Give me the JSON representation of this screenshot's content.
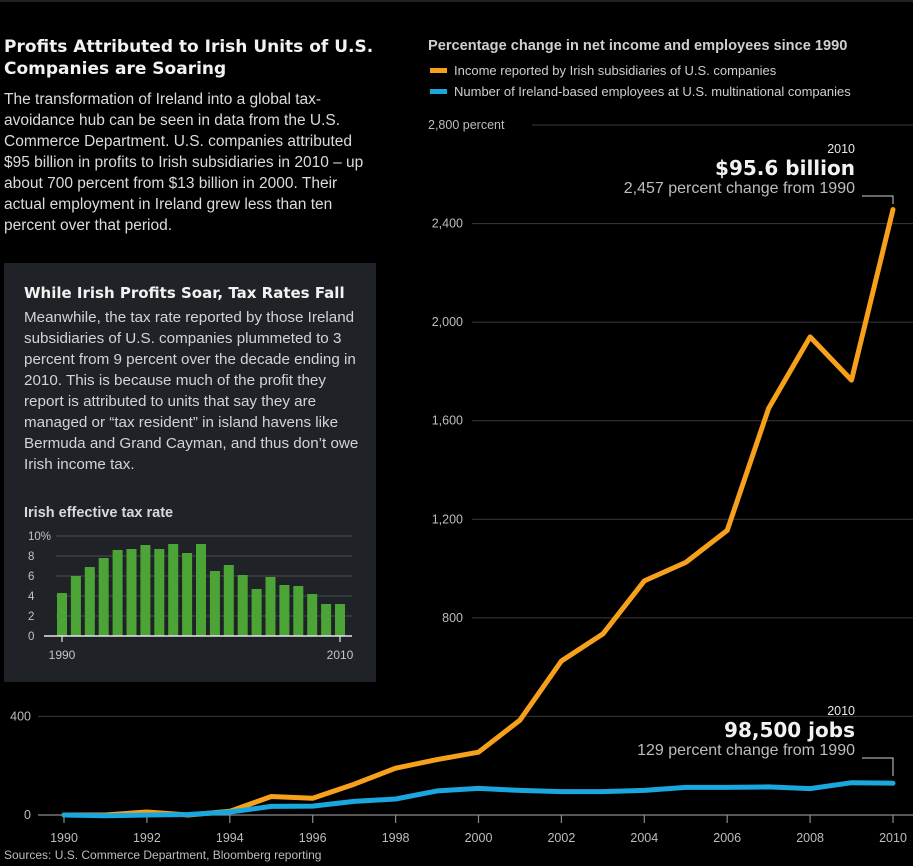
{
  "headline": "Profits Attributed to Irish Units of U.S. Companies are Soaring",
  "intro": "The transformation of Ireland into a  global tax-avoidance hub can be seen in data from the U.S. Commerce Department. U.S. companies attributed $95 billion in profits to Irish subsidiaries in 2010 – up about 700 percent from $13 billion in 2000. Their actual employment in Ireland grew less than ten percent over that period.",
  "panel": {
    "title": "While Irish Profits Soar, Tax Rates Fall",
    "text": "Meanwhile, the tax rate reported by those Ireland subsidiaries of U.S. companies plummeted to 3 percent from 9 percent over the decade ending in 2010. This is because much of the profit they report is attributed to units that say they are managed or “tax resident” in island havens like Bermuda and Grand Cayman, and thus don’t owe Irish income tax."
  },
  "source": "Sources: U.S. Commerce Department, Bloomberg reporting",
  "colors": {
    "income": "#f7a01c",
    "employees": "#1aa7dd",
    "bars": "#4ca436",
    "grid": "#3a3a3a"
  },
  "annotations": {
    "income": {
      "year": "2010",
      "value": "$95.6 billion",
      "sub": "2,457 percent change from 1990"
    },
    "employees": {
      "year": "2010",
      "value": "98,500 jobs",
      "sub": "129 percent change from 1990"
    }
  },
  "chart_data": [
    {
      "type": "line",
      "title": "Percentage change in net income and employees since 1990",
      "xlabel": "",
      "ylabel": "",
      "x": [
        1990,
        1991,
        1992,
        1993,
        1994,
        1995,
        1996,
        1997,
        1998,
        1999,
        2000,
        2001,
        2002,
        2003,
        2004,
        2005,
        2006,
        2007,
        2008,
        2009,
        2010
      ],
      "x_tick_labels": [
        "1990",
        "1992",
        "1994",
        "1996",
        "1998",
        "2000",
        "2002",
        "2004",
        "2006",
        "2008",
        "2010"
      ],
      "y_tick_labels": [
        "0",
        "400",
        "800",
        "1,200",
        "1,600",
        "2,000",
        "2,400",
        "2,800 percent"
      ],
      "ylim": [
        0,
        2800
      ],
      "grid": true,
      "legend_position": "top-left",
      "series": [
        {
          "name": "Income reported by Irish subsidiaries of U.S. companies",
          "color": "#f7a01c",
          "values": [
            0,
            0,
            12,
            0,
            15,
            75,
            68,
            125,
            190,
            225,
            255,
            385,
            625,
            735,
            950,
            1025,
            1155,
            1650,
            1940,
            1765,
            2457
          ]
        },
        {
          "name": "Number of Ireland-based employees at U.S. multinational companies",
          "color": "#1aa7dd",
          "values": [
            0,
            -3,
            0,
            2,
            12,
            35,
            36,
            55,
            65,
            98,
            108,
            100,
            95,
            95,
            100,
            112,
            112,
            114,
            107,
            131,
            129
          ]
        }
      ]
    },
    {
      "type": "bar",
      "title": "Irish effective tax rate",
      "x": [
        1990,
        1991,
        1992,
        1993,
        1994,
        1995,
        1996,
        1997,
        1998,
        1999,
        2000,
        2001,
        2002,
        2003,
        2004,
        2005,
        2006,
        2007,
        2008,
        2009,
        2010
      ],
      "x_tick_labels": [
        "1990",
        "2010"
      ],
      "y_tick_labels": [
        "0",
        "2",
        "4",
        "6",
        "8",
        "10%"
      ],
      "ylim": [
        0,
        10
      ],
      "grid": true,
      "values": [
        4.3,
        6.0,
        6.9,
        7.8,
        8.6,
        8.7,
        9.1,
        8.7,
        9.2,
        8.3,
        9.2,
        6.5,
        7.1,
        6.1,
        4.7,
        5.9,
        5.1,
        5.0,
        4.2,
        3.2,
        3.2
      ]
    }
  ]
}
